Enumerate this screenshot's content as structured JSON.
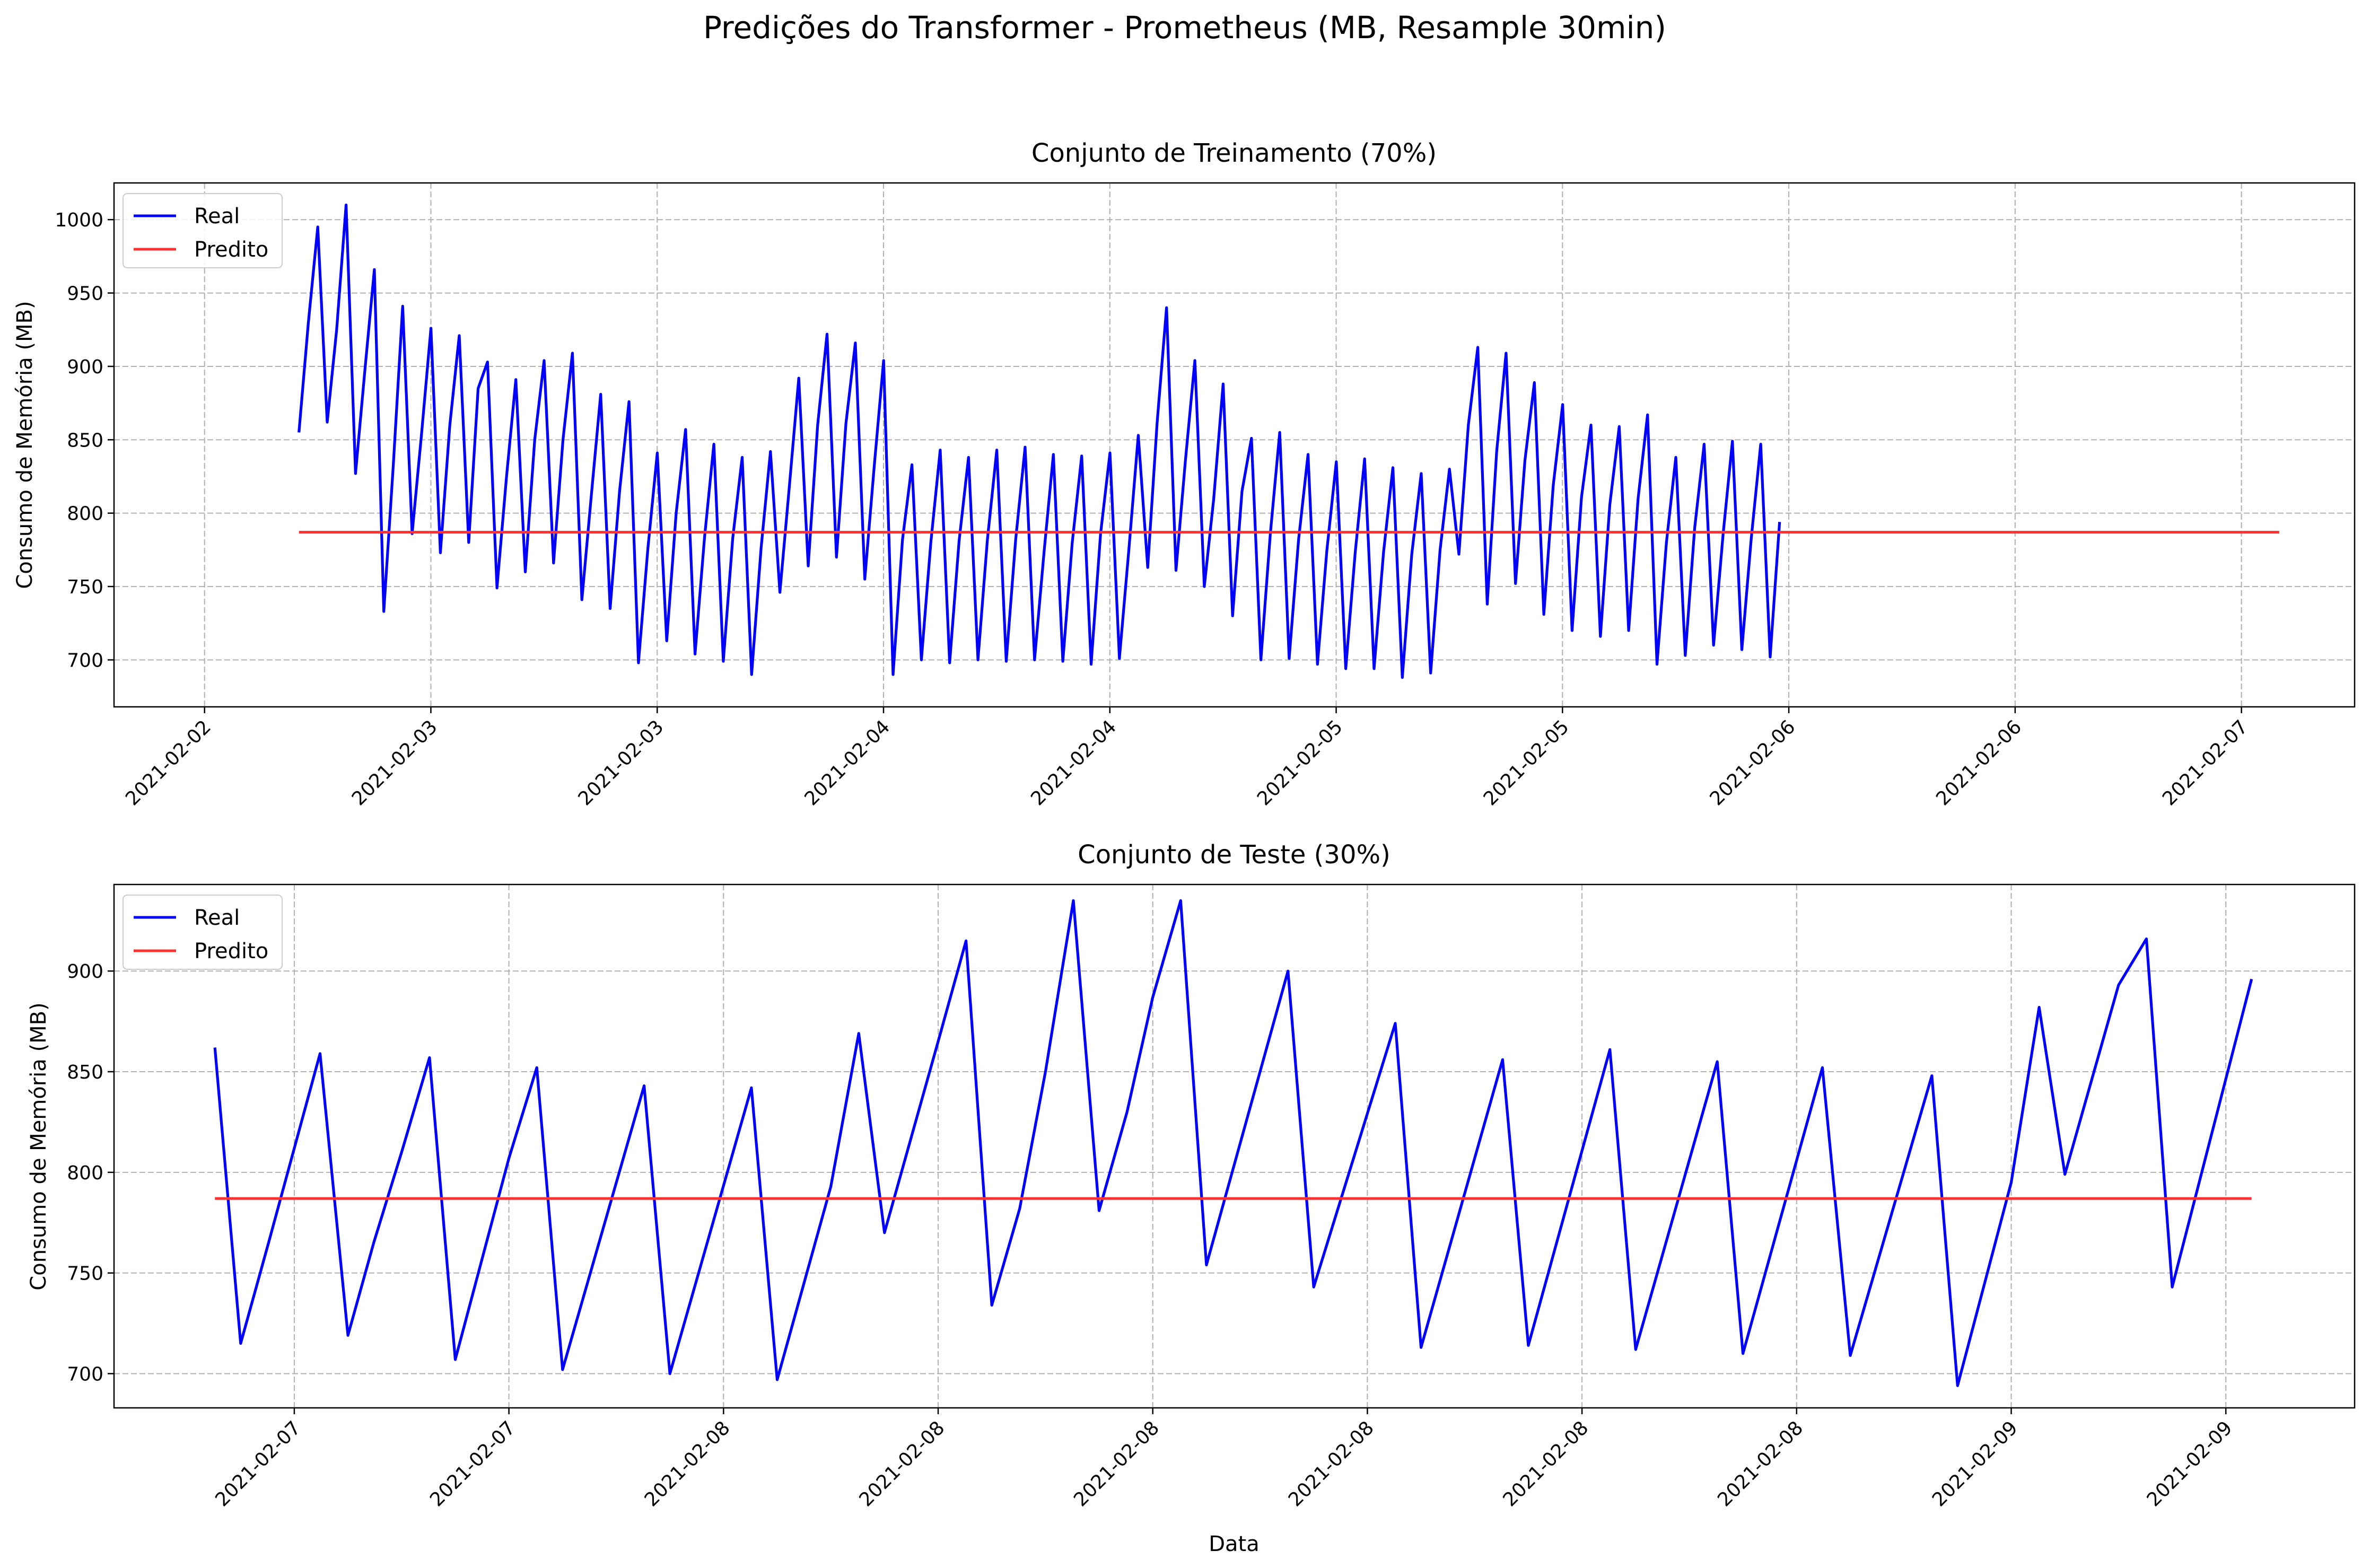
{
  "figure": {
    "suptitle": "Predições do Transformer - Prometheus (MB, Resample 30min)"
  },
  "chart_data": [
    {
      "type": "line",
      "title": "Conjunto de Treinamento (70%)",
      "xlabel": "",
      "ylabel": "Consumo de Memória (MB)",
      "ylim": [
        668,
        1025
      ],
      "xlim": [
        -0.4,
        9.5
      ],
      "yticks": [
        700,
        750,
        800,
        850,
        900,
        950,
        1000
      ],
      "xtick_positions": [
        0,
        1,
        2,
        3,
        4,
        5,
        6,
        7,
        8,
        9
      ],
      "xtick_labels": [
        "2021-02-02",
        "2021-02-03",
        "2021-02-03",
        "2021-02-04",
        "2021-02-04",
        "2021-02-05",
        "2021-02-05",
        "2021-02-06",
        "2021-02-06",
        "2021-02-07"
      ],
      "grid": true,
      "legend": "upper-left",
      "series": [
        {
          "name": "Real",
          "color": "#0000ff",
          "x_start": 0.417,
          "x_step": 0.04167,
          "values": [
            855,
            930,
            995,
            862,
            925,
            1010,
            827,
            898,
            966,
            733,
            832,
            941,
            786,
            854,
            926,
            773,
            860,
            921,
            780,
            885,
            903,
            749,
            824,
            891,
            760,
            850,
            904,
            766,
            850,
            909,
            741,
            812,
            881,
            735,
            815,
            876,
            698,
            776,
            841,
            713,
            800,
            857,
            704,
            783,
            847,
            699,
            783,
            838,
            690,
            776,
            842,
            746,
            818,
            892,
            764,
            860,
            922,
            770,
            861,
            916,
            755,
            832,
            904,
            690,
            782,
            833,
            700,
            780,
            843,
            698,
            781,
            838,
            700,
            782,
            843,
            699,
            782,
            845,
            700,
            773,
            840,
            699,
            780,
            839,
            697,
            786,
            841,
            701,
            775,
            853,
            763,
            862,
            940,
            761,
            836,
            904,
            750,
            810,
            888,
            730,
            815,
            851,
            700,
            786,
            855,
            701,
            782,
            840,
            697,
            775,
            835,
            694,
            773,
            837,
            694,
            773,
            831,
            688,
            772,
            827,
            691,
            775,
            830,
            772,
            860,
            913,
            738,
            842,
            909,
            752,
            836,
            889,
            731,
            819,
            874,
            720,
            811,
            860,
            716,
            806,
            859,
            720,
            810,
            867,
            697,
            780,
            838,
            703,
            790,
            847,
            710,
            785,
            849,
            707,
            783,
            847,
            702,
            794
          ]
        },
        {
          "name": "Predito",
          "color": "#ff3333",
          "x_range": [
            0.417,
            9.167
          ],
          "value": 787
        }
      ]
    },
    {
      "type": "line",
      "title": "Conjunto de Teste (30%)",
      "xlabel": "Data",
      "ylabel": "Consumo de Memória (MB)",
      "ylim": [
        683,
        943
      ],
      "xlim": [
        -0.84,
        9.6
      ],
      "yticks": [
        700,
        750,
        800,
        850,
        900
      ],
      "xtick_positions": [
        0,
        1,
        2,
        3,
        4,
        5,
        6,
        7,
        8,
        9
      ],
      "xtick_labels": [
        "2021-02-07",
        "2021-02-07",
        "2021-02-08",
        "2021-02-08",
        "2021-02-08",
        "2021-02-08",
        "2021-02-08",
        "2021-02-08",
        "2021-02-09",
        "2021-02-09"
      ],
      "grid": true,
      "legend": "upper-left",
      "series": [
        {
          "name": "Real",
          "color": "#0000ff",
          "x": [
            -0.37,
            -0.25,
            -0.12,
            0.12,
            0.25,
            0.37,
            0.5,
            0.63,
            0.75,
            1.0,
            1.13,
            1.25,
            1.63,
            1.75,
            2.13,
            2.25,
            2.5,
            2.63,
            2.75,
            3.0,
            3.13,
            3.25,
            3.38,
            3.5,
            3.63,
            3.75,
            3.88,
            4.0,
            4.13,
            4.25,
            4.63,
            4.75,
            5.13,
            5.25,
            5.63,
            5.75,
            6.13,
            6.25,
            6.63,
            6.75,
            7.12,
            7.25,
            7.63,
            7.75,
            8.0,
            8.13,
            8.25,
            8.5,
            8.63,
            8.75,
            9.12
          ],
          "values": [
            862,
            715,
            765,
            859,
            719,
            765,
            810,
            857,
            707,
            807,
            852,
            702,
            843,
            700,
            842,
            697,
            793,
            869,
            770,
            865,
            915,
            734,
            782,
            850,
            935,
            781,
            830,
            887,
            935,
            754,
            900,
            743,
            874,
            713,
            856,
            714,
            861,
            712,
            855,
            710,
            852,
            709,
            848,
            694,
            795,
            882,
            799,
            893,
            916,
            743,
            896
          ]
        },
        {
          "name": "Predito",
          "color": "#ff3333",
          "x_range": [
            -0.37,
            9.12
          ],
          "value": 787
        }
      ]
    }
  ]
}
